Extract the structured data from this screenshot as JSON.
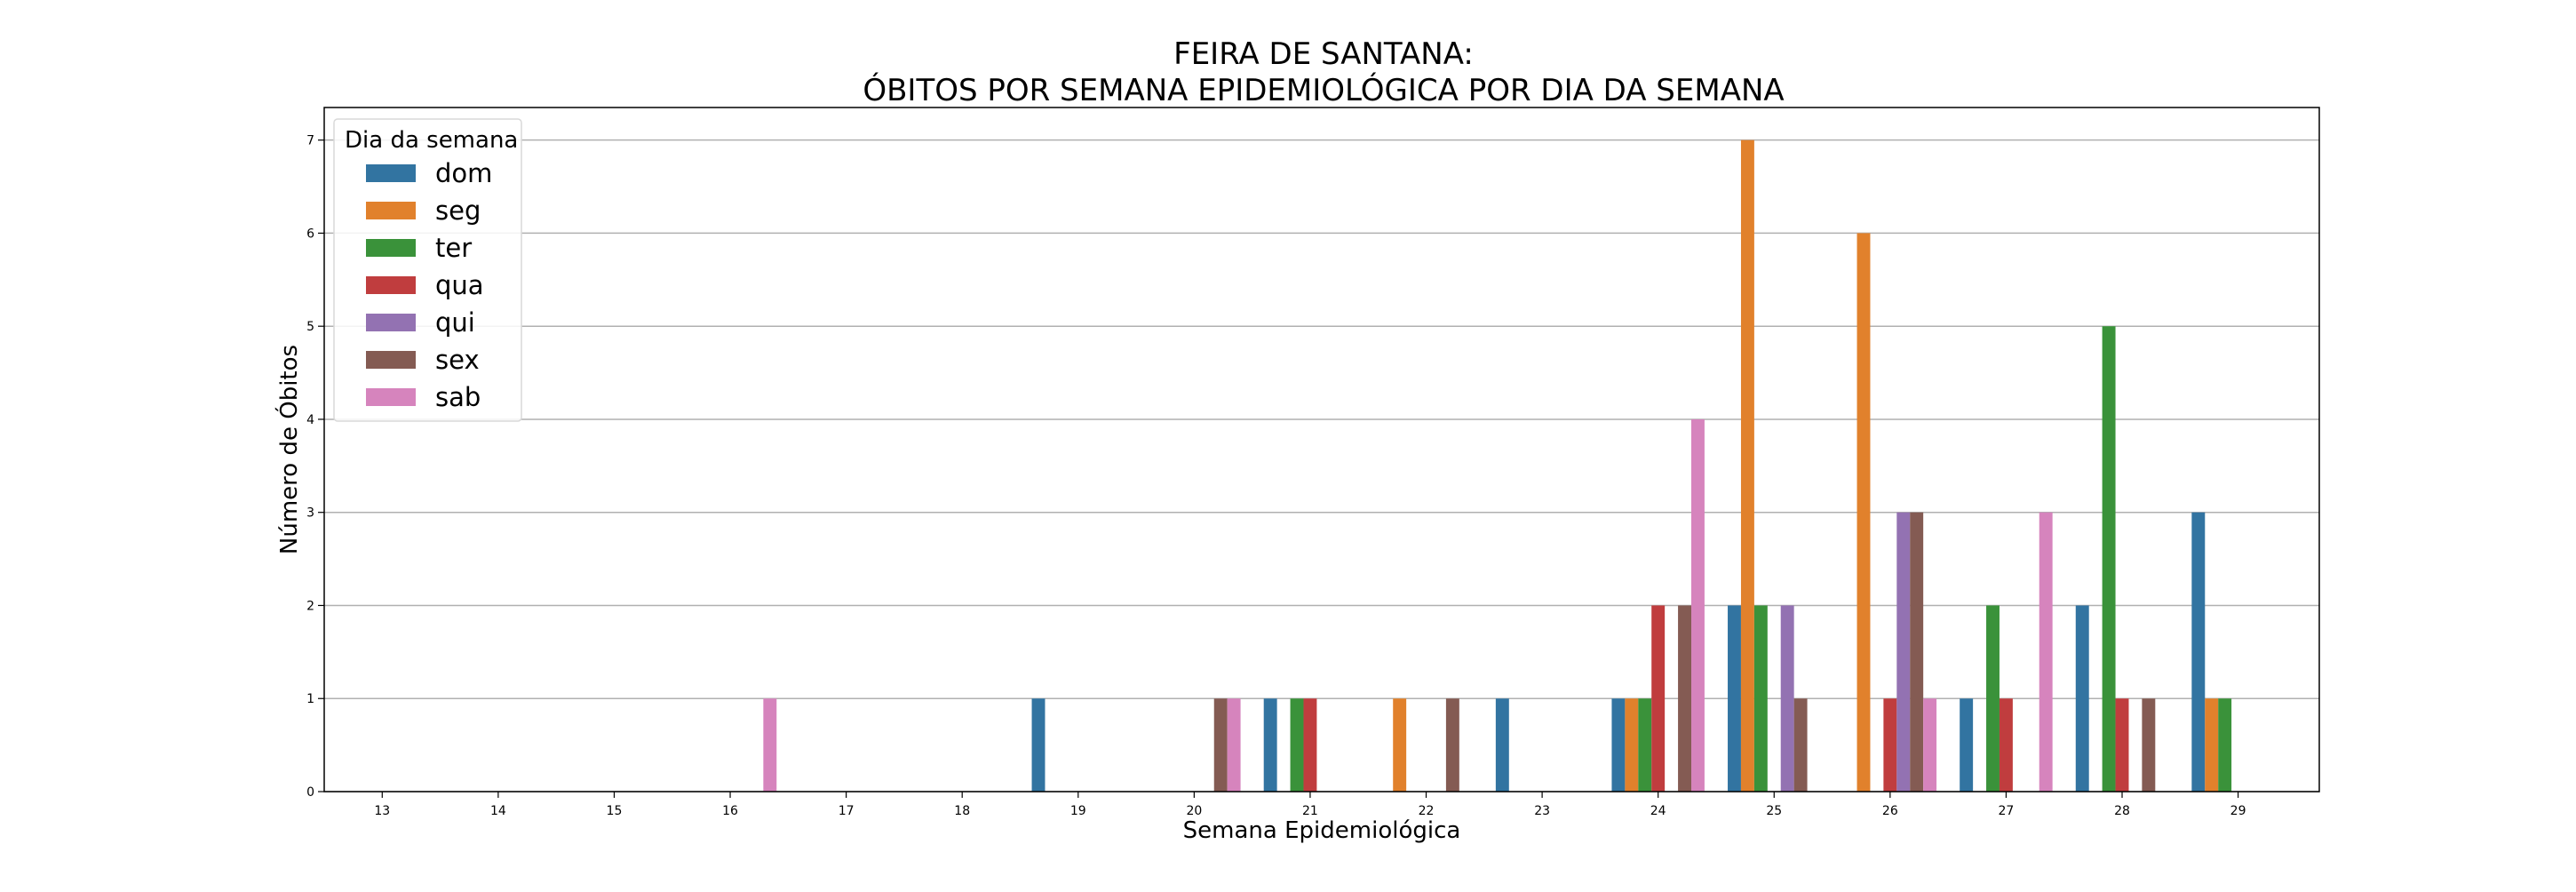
{
  "chart_data": {
    "type": "bar",
    "title_line1": "FEIRA DE SANTANA:",
    "title_line2": "ÓBITOS POR SEMANA EPIDEMIOLÓGICA POR DIA DA SEMANA",
    "xlabel": "Semana Epidemiológica",
    "ylabel": "Número de Óbitos",
    "ylim": [
      0,
      7.35
    ],
    "yticks": [
      0,
      1,
      2,
      3,
      4,
      5,
      6,
      7
    ],
    "grid": "horizontal",
    "legend": {
      "title": "Dia da semana",
      "placement": "top-left"
    },
    "categories": [
      "13",
      "14",
      "15",
      "16",
      "17",
      "18",
      "19",
      "20",
      "21",
      "22",
      "23",
      "24",
      "25",
      "26",
      "27",
      "28",
      "29"
    ],
    "series": [
      {
        "name": "dom",
        "color": "#3274a1",
        "values": [
          0,
          0,
          0,
          0,
          0,
          0,
          1,
          0,
          1,
          0,
          1,
          1,
          2,
          0,
          1,
          2,
          3
        ]
      },
      {
        "name": "seg",
        "color": "#e1812c",
        "values": [
          0,
          0,
          0,
          0,
          0,
          0,
          0,
          0,
          0,
          1,
          0,
          1,
          7,
          6,
          0,
          0,
          1
        ]
      },
      {
        "name": "ter",
        "color": "#3a923a",
        "values": [
          0,
          0,
          0,
          0,
          0,
          0,
          0,
          0,
          1,
          0,
          0,
          1,
          2,
          0,
          2,
          5,
          1
        ]
      },
      {
        "name": "qua",
        "color": "#c03d3e",
        "values": [
          0,
          0,
          0,
          0,
          0,
          0,
          0,
          0,
          1,
          0,
          0,
          2,
          0,
          1,
          1,
          1,
          0
        ]
      },
      {
        "name": "qui",
        "color": "#9372b2",
        "values": [
          0,
          0,
          0,
          0,
          0,
          0,
          0,
          0,
          0,
          0,
          0,
          0,
          2,
          3,
          0,
          0,
          0
        ]
      },
      {
        "name": "sex",
        "color": "#845b53",
        "values": [
          0,
          0,
          0,
          0,
          0,
          0,
          0,
          1,
          0,
          1,
          0,
          2,
          1,
          3,
          0,
          1,
          0
        ]
      },
      {
        "name": "sab",
        "color": "#d684bd",
        "values": [
          0,
          0,
          0,
          1,
          0,
          0,
          0,
          1,
          0,
          0,
          0,
          4,
          0,
          1,
          3,
          0,
          0
        ]
      }
    ]
  }
}
